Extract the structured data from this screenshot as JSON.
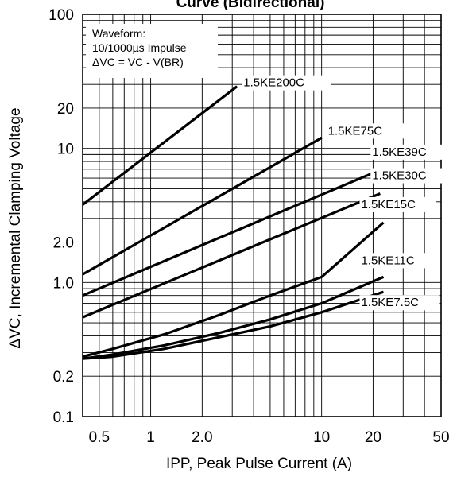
{
  "chart_data": {
    "type": "line",
    "title": "Curve (Bidirectional)",
    "xlabel": "IPP, Peak Pulse Current (A)",
    "ylabel": "ΔVC, Incremental Clamping Voltage",
    "x_scale": "log",
    "y_scale": "log",
    "xlim": [
      0.4,
      50
    ],
    "ylim": [
      0.1,
      100
    ],
    "x_ticks": [
      {
        "value": 0.5,
        "label": "0.5"
      },
      {
        "value": 1,
        "label": "1"
      },
      {
        "value": 2,
        "label": "2.0"
      },
      {
        "value": 10,
        "label": "10"
      },
      {
        "value": 20,
        "label": "20"
      },
      {
        "value": 50,
        "label": "50"
      }
    ],
    "y_ticks": [
      {
        "value": 0.1,
        "label": "0.1"
      },
      {
        "value": 0.2,
        "label": "0.2"
      },
      {
        "value": 1,
        "label": "1.0"
      },
      {
        "value": 2,
        "label": "2.0"
      },
      {
        "value": 10,
        "label": "10"
      },
      {
        "value": 20,
        "label": "20"
      },
      {
        "value": 100,
        "label": "100"
      }
    ],
    "grid": true,
    "annotation": {
      "lines": [
        "Waveform:",
        "10/1000µs Impulse",
        "ΔVC = VC - V(BR)"
      ]
    },
    "series": [
      {
        "name": "1.5KE200C",
        "x": [
          0.4,
          3.2
        ],
        "y": [
          3.8,
          29
        ]
      },
      {
        "name": "1.5KE75C",
        "x": [
          0.4,
          10
        ],
        "y": [
          1.15,
          12
        ]
      },
      {
        "name": "1.5KE39C",
        "x": [
          0.4,
          22
        ],
        "y": [
          0.8,
          6.9
        ]
      },
      {
        "name": "1.5KE30C",
        "x": [
          0.4,
          22
        ],
        "y": [
          0.55,
          4.6
        ]
      },
      {
        "name": "1.5KE15C",
        "x": [
          0.4,
          0.6,
          1.2,
          2.5,
          5,
          10,
          23
        ],
        "y": [
          0.28,
          0.32,
          0.41,
          0.57,
          0.8,
          1.1,
          2.8
        ]
      },
      {
        "name": "1.5KE11C",
        "x": [
          0.4,
          0.6,
          1.2,
          2.5,
          5,
          10,
          23
        ],
        "y": [
          0.27,
          0.29,
          0.34,
          0.42,
          0.53,
          0.7,
          1.1
        ]
      },
      {
        "name": "1.5KE7.5C",
        "x": [
          0.4,
          0.6,
          1.2,
          2.5,
          5,
          10,
          23
        ],
        "y": [
          0.27,
          0.28,
          0.32,
          0.39,
          0.47,
          0.6,
          0.85
        ]
      }
    ]
  }
}
